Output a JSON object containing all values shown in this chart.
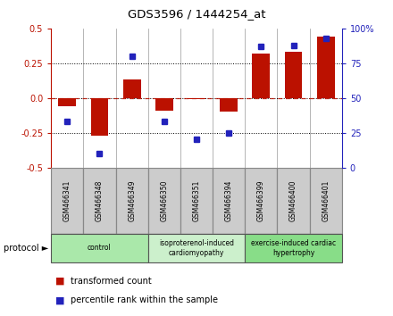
{
  "title": "GDS3596 / 1444254_at",
  "samples": [
    "GSM466341",
    "GSM466348",
    "GSM466349",
    "GSM466350",
    "GSM466351",
    "GSM466394",
    "GSM466399",
    "GSM466400",
    "GSM466401"
  ],
  "red_values": [
    -0.06,
    -0.27,
    0.13,
    -0.09,
    -0.01,
    -0.1,
    0.32,
    0.33,
    0.44
  ],
  "blue_values": [
    33,
    10,
    80,
    33,
    20,
    25,
    87,
    88,
    93
  ],
  "groups": [
    {
      "label": "control",
      "start": 0,
      "end": 3,
      "color": "#aae8aa"
    },
    {
      "label": "isoproterenol-induced\ncardiomyopathy",
      "start": 3,
      "end": 6,
      "color": "#ccf0cc"
    },
    {
      "label": "exercise-induced cardiac\nhypertrophy",
      "start": 6,
      "end": 9,
      "color": "#88dd88"
    }
  ],
  "ylim_left": [
    -0.5,
    0.5
  ],
  "ylim_right": [
    0,
    100
  ],
  "yticks_left": [
    -0.5,
    -0.25,
    0.0,
    0.25,
    0.5
  ],
  "yticks_right": [
    0,
    25,
    50,
    75,
    100
  ],
  "red_color": "#bb1100",
  "blue_color": "#2222bb",
  "bar_width": 0.55,
  "protocol_label": "protocol",
  "legend_red": "transformed count",
  "legend_blue": "percentile rank within the sample",
  "sample_bg": "#cccccc",
  "sample_border": "#888888"
}
